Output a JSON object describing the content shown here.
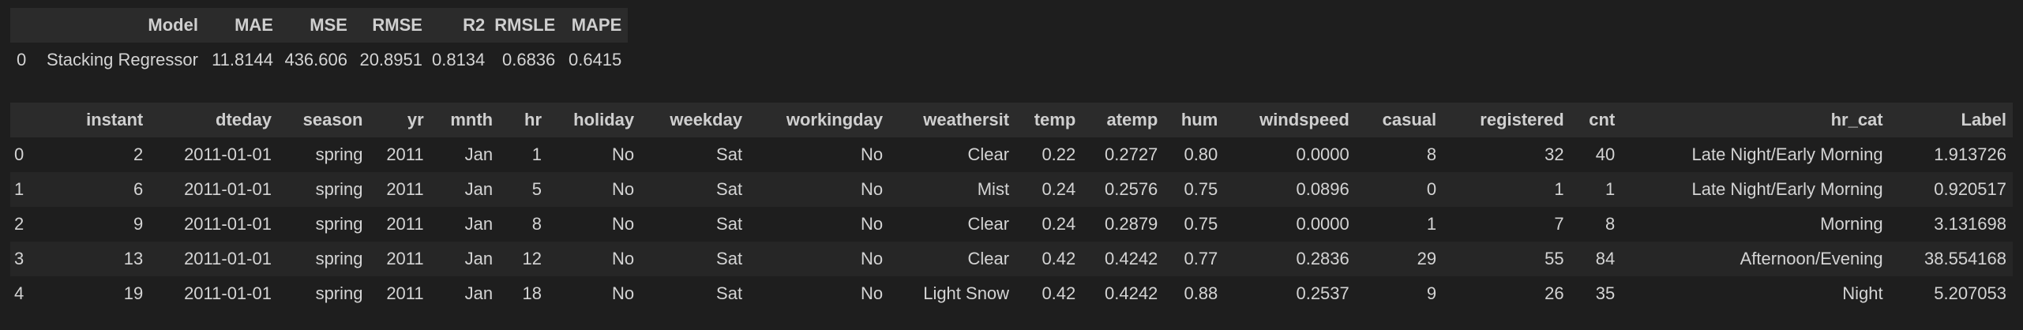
{
  "metrics": {
    "columns": [
      "",
      "Model",
      "MAE",
      "MSE",
      "RMSE",
      "R2",
      "RMSLE",
      "MAPE"
    ],
    "rows": [
      [
        "0",
        "Stacking Regressor",
        "11.8144",
        "436.606",
        "20.8951",
        "0.8134",
        "0.6836",
        "0.6415"
      ]
    ]
  },
  "data": {
    "columns": [
      "",
      "instant",
      "dteday",
      "season",
      "yr",
      "mnth",
      "hr",
      "holiday",
      "weekday",
      "workingday",
      "weathersit",
      "temp",
      "atemp",
      "hum",
      "windspeed",
      "casual",
      "registered",
      "cnt",
      "hr_cat",
      "Label"
    ],
    "rows": [
      [
        "0",
        "2",
        "2011-01-01",
        "spring",
        "2011",
        "Jan",
        "1",
        "No",
        "Sat",
        "No",
        "Clear",
        "0.22",
        "0.2727",
        "0.80",
        "0.0000",
        "8",
        "32",
        "40",
        "Late Night/Early Morning",
        "1.913726"
      ],
      [
        "1",
        "6",
        "2011-01-01",
        "spring",
        "2011",
        "Jan",
        "5",
        "No",
        "Sat",
        "No",
        "Mist",
        "0.24",
        "0.2576",
        "0.75",
        "0.0896",
        "0",
        "1",
        "1",
        "Late Night/Early Morning",
        "0.920517"
      ],
      [
        "2",
        "9",
        "2011-01-01",
        "spring",
        "2011",
        "Jan",
        "8",
        "No",
        "Sat",
        "No",
        "Clear",
        "0.24",
        "0.2879",
        "0.75",
        "0.0000",
        "1",
        "7",
        "8",
        "Morning",
        "3.131698"
      ],
      [
        "3",
        "13",
        "2011-01-01",
        "spring",
        "2011",
        "Jan",
        "12",
        "No",
        "Sat",
        "No",
        "Clear",
        "0.42",
        "0.4242",
        "0.77",
        "0.2836",
        "29",
        "55",
        "84",
        "Afternoon/Evening",
        "38.554168"
      ],
      [
        "4",
        "19",
        "2011-01-01",
        "spring",
        "2011",
        "Jan",
        "18",
        "No",
        "Sat",
        "No",
        "Light Snow",
        "0.42",
        "0.4242",
        "0.88",
        "0.2537",
        "9",
        "26",
        "35",
        "Night",
        "5.207053"
      ]
    ]
  }
}
